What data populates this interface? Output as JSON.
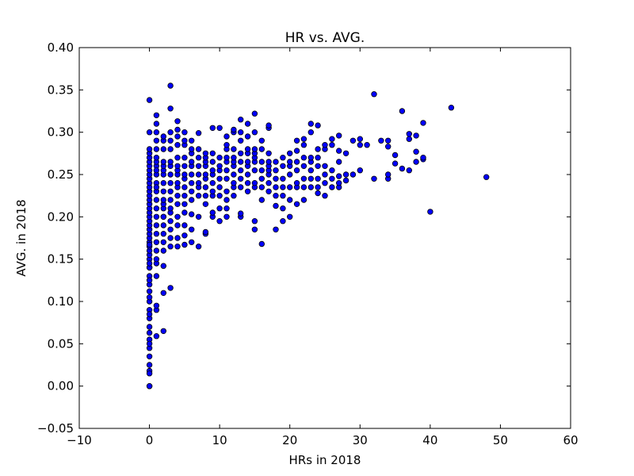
{
  "chart_data": {
    "type": "scatter",
    "title": "HR vs. AVG.",
    "xlabel": "HRs in 2018",
    "ylabel": "AVG. in 2018",
    "xlim": [
      -10,
      60
    ],
    "ylim": [
      -0.05,
      0.4
    ],
    "xticks": [
      -10,
      0,
      10,
      20,
      30,
      40,
      50,
      60
    ],
    "yticks": [
      -0.05,
      0.0,
      0.05,
      0.1,
      0.15,
      0.2,
      0.25,
      0.3,
      0.35,
      0.4
    ],
    "xtick_labels": [
      "−10",
      "0",
      "10",
      "20",
      "30",
      "40",
      "50",
      "60"
    ],
    "ytick_labels": [
      "−0.05",
      "0.00",
      "0.05",
      "0.10",
      "0.15",
      "0.20",
      "0.25",
      "0.30",
      "0.35",
      "0.40"
    ],
    "grid": false,
    "marker_color": "#0000ff",
    "marker_edge": "#000000",
    "series": [
      {
        "x": [
          0,
          0,
          0,
          0,
          0,
          0,
          0,
          0,
          0,
          0,
          0,
          0,
          0,
          0,
          0,
          0,
          0,
          0,
          0,
          0,
          0,
          0,
          0,
          0,
          0,
          0,
          0,
          0,
          0,
          0,
          0,
          0,
          0,
          0,
          0,
          0,
          0,
          0,
          0,
          0,
          0,
          0,
          0,
          0,
          0,
          0,
          0,
          0,
          0,
          0,
          0,
          0,
          0,
          1,
          1,
          1,
          1,
          1,
          1,
          1,
          1,
          1,
          1,
          1,
          1,
          1,
          1,
          1,
          1,
          1,
          1,
          1,
          1,
          1,
          1,
          1,
          1,
          1,
          1,
          2,
          2,
          2,
          2,
          2,
          2,
          2,
          2,
          2,
          2,
          2,
          2,
          2,
          2,
          2,
          2,
          2,
          2,
          2,
          2,
          2,
          3,
          3,
          3,
          3,
          3,
          3,
          3,
          3,
          3,
          3,
          3,
          3,
          3,
          3,
          3,
          3,
          3,
          3,
          4,
          4,
          4,
          4,
          4,
          4,
          4,
          4,
          4,
          4,
          4,
          4,
          4,
          4,
          4,
          4,
          5,
          5,
          5,
          5,
          5,
          5,
          5,
          5,
          5,
          5,
          5,
          5,
          5,
          5,
          6,
          6,
          6,
          6,
          6,
          6,
          6,
          6,
          6,
          6,
          6,
          6,
          7,
          7,
          7,
          7,
          7,
          7,
          7,
          7,
          7,
          7,
          8,
          8,
          8,
          8,
          8,
          8,
          8,
          8,
          8,
          8,
          8,
          9,
          9,
          9,
          9,
          9,
          9,
          9,
          9,
          9,
          9,
          10,
          10,
          10,
          10,
          10,
          10,
          10,
          10,
          10,
          11,
          11,
          11,
          11,
          11,
          11,
          11,
          11,
          11,
          11,
          11,
          12,
          12,
          12,
          12,
          12,
          12,
          12,
          12,
          12,
          12,
          13,
          13,
          13,
          13,
          13,
          13,
          13,
          13,
          13,
          13,
          14,
          14,
          14,
          14,
          14,
          14,
          14,
          14,
          14,
          15,
          15,
          15,
          15,
          15,
          15,
          15,
          15,
          15,
          15,
          15,
          16,
          16,
          16,
          16,
          16,
          16,
          16,
          16,
          17,
          17,
          17,
          17,
          17,
          17,
          17,
          17,
          17,
          18,
          18,
          18,
          18,
          18,
          18,
          18,
          19,
          19,
          19,
          19,
          19,
          19,
          19,
          20,
          20,
          20,
          20,
          20,
          20,
          20,
          21,
          21,
          21,
          21,
          21,
          21,
          21,
          22,
          22,
          22,
          22,
          22,
          22,
          22,
          23,
          23,
          23,
          23,
          23,
          23,
          23,
          24,
          24,
          24,
          24,
          24,
          24,
          24,
          25,
          25,
          25,
          25,
          25,
          25,
          26,
          26,
          26,
          26,
          26,
          27,
          27,
          27,
          27,
          27,
          27,
          28,
          28,
          28,
          29,
          29,
          30,
          30,
          30,
          31,
          32,
          32,
          33,
          34,
          34,
          34,
          34,
          35,
          35,
          36,
          36,
          37,
          37,
          37,
          38,
          38,
          38,
          39,
          39,
          39,
          40,
          43,
          48
        ],
        "y": [
          0.0,
          0.018,
          0.025,
          0.035,
          0.045,
          0.055,
          0.063,
          0.07,
          0.08,
          0.09,
          0.1,
          0.105,
          0.112,
          0.12,
          0.13,
          0.14,
          0.15,
          0.155,
          0.16,
          0.165,
          0.17,
          0.175,
          0.18,
          0.185,
          0.19,
          0.195,
          0.2,
          0.205,
          0.21,
          0.215,
          0.22,
          0.225,
          0.23,
          0.235,
          0.24,
          0.245,
          0.25,
          0.255,
          0.26,
          0.265,
          0.27,
          0.275,
          0.28,
          0.3,
          0.338,
          0.05,
          0.14,
          0.085,
          0.125,
          0.145,
          0.015,
          0.167,
          0.0,
          0.059,
          0.09,
          0.095,
          0.13,
          0.145,
          0.16,
          0.17,
          0.18,
          0.19,
          0.2,
          0.21,
          0.22,
          0.23,
          0.24,
          0.25,
          0.26,
          0.265,
          0.27,
          0.28,
          0.29,
          0.3,
          0.31,
          0.32,
          0.15,
          0.255,
          0.235,
          0.065,
          0.11,
          0.142,
          0.16,
          0.17,
          0.18,
          0.19,
          0.2,
          0.21,
          0.215,
          0.22,
          0.23,
          0.24,
          0.25,
          0.255,
          0.26,
          0.265,
          0.28,
          0.29,
          0.295,
          0.2,
          0.116,
          0.165,
          0.175,
          0.185,
          0.195,
          0.205,
          0.21,
          0.22,
          0.23,
          0.24,
          0.25,
          0.26,
          0.265,
          0.28,
          0.29,
          0.3,
          0.328,
          0.355,
          0.165,
          0.175,
          0.19,
          0.2,
          0.215,
          0.225,
          0.235,
          0.24,
          0.25,
          0.255,
          0.26,
          0.27,
          0.285,
          0.295,
          0.303,
          0.313,
          0.167,
          0.178,
          0.19,
          0.205,
          0.215,
          0.225,
          0.235,
          0.245,
          0.25,
          0.26,
          0.27,
          0.285,
          0.29,
          0.3,
          0.17,
          0.185,
          0.203,
          0.22,
          0.23,
          0.24,
          0.25,
          0.26,
          0.265,
          0.275,
          0.28,
          0.29,
          0.165,
          0.2,
          0.225,
          0.235,
          0.24,
          0.25,
          0.26,
          0.27,
          0.28,
          0.299,
          0.18,
          0.182,
          0.215,
          0.225,
          0.235,
          0.245,
          0.25,
          0.26,
          0.265,
          0.27,
          0.275,
          0.2,
          0.205,
          0.225,
          0.23,
          0.24,
          0.25,
          0.255,
          0.265,
          0.275,
          0.305,
          0.195,
          0.21,
          0.225,
          0.235,
          0.245,
          0.255,
          0.26,
          0.27,
          0.305,
          0.2,
          0.21,
          0.22,
          0.23,
          0.245,
          0.255,
          0.265,
          0.27,
          0.28,
          0.285,
          0.295,
          0.225,
          0.235,
          0.24,
          0.25,
          0.26,
          0.265,
          0.27,
          0.28,
          0.3,
          0.303,
          0.2,
          0.204,
          0.235,
          0.245,
          0.255,
          0.265,
          0.275,
          0.29,
          0.3,
          0.315,
          0.23,
          0.24,
          0.25,
          0.26,
          0.265,
          0.275,
          0.28,
          0.295,
          0.31,
          0.185,
          0.195,
          0.235,
          0.24,
          0.255,
          0.265,
          0.27,
          0.275,
          0.28,
          0.3,
          0.322,
          0.168,
          0.22,
          0.235,
          0.245,
          0.255,
          0.265,
          0.28,
          0.29,
          0.23,
          0.24,
          0.25,
          0.255,
          0.26,
          0.265,
          0.275,
          0.305,
          0.308,
          0.185,
          0.213,
          0.225,
          0.235,
          0.245,
          0.255,
          0.265,
          0.195,
          0.21,
          0.225,
          0.235,
          0.245,
          0.26,
          0.27,
          0.2,
          0.22,
          0.235,
          0.25,
          0.26,
          0.265,
          0.275,
          0.215,
          0.235,
          0.24,
          0.255,
          0.265,
          0.278,
          0.29,
          0.22,
          0.235,
          0.245,
          0.26,
          0.27,
          0.285,
          0.292,
          0.235,
          0.245,
          0.255,
          0.265,
          0.27,
          0.3,
          0.31,
          0.228,
          0.235,
          0.245,
          0.26,
          0.27,
          0.28,
          0.308,
          0.225,
          0.24,
          0.25,
          0.26,
          0.28,
          0.285,
          0.235,
          0.245,
          0.255,
          0.285,
          0.292,
          0.235,
          0.24,
          0.248,
          0.265,
          0.278,
          0.296,
          0.243,
          0.25,
          0.275,
          0.25,
          0.29,
          0.255,
          0.292,
          0.285,
          0.285,
          0.245,
          0.345,
          0.29,
          0.245,
          0.25,
          0.283,
          0.29,
          0.263,
          0.273,
          0.257,
          0.325,
          0.255,
          0.292,
          0.298,
          0.265,
          0.277,
          0.296,
          0.268,
          0.27,
          0.311,
          0.206,
          0.329,
          0.247
        ]
      }
    ]
  }
}
